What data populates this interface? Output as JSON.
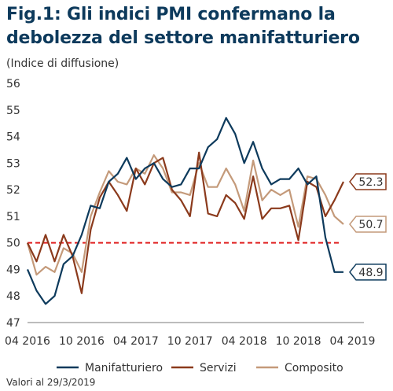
{
  "title_line1": "Fig.1: Gli indici PMI confermano la",
  "title_line2": "debolezza del settore manifatturiero",
  "footer": "Valori al 29/3/2019",
  "chart_data": {
    "type": "line",
    "ylabel": "(Indice di diffusione)",
    "ylim": [
      47,
      56
    ],
    "yticks": [
      47,
      48,
      49,
      50,
      51,
      52,
      53,
      54,
      55,
      56
    ],
    "xtick_labels": [
      "04 2016",
      "10 2016",
      "04 2017",
      "10 2017",
      "04 2018",
      "10 2018",
      "04 2019"
    ],
    "xtick_index": [
      0,
      6,
      12,
      18,
      24,
      30,
      36
    ],
    "threshold": 50,
    "x_months": [
      "2016-04",
      "2016-05",
      "2016-06",
      "2016-07",
      "2016-08",
      "2016-09",
      "2016-10",
      "2016-11",
      "2016-12",
      "2017-01",
      "2017-02",
      "2017-03",
      "2017-04",
      "2017-05",
      "2017-06",
      "2017-07",
      "2017-08",
      "2017-09",
      "2017-10",
      "2017-11",
      "2017-12",
      "2018-01",
      "2018-02",
      "2018-03",
      "2018-04",
      "2018-05",
      "2018-06",
      "2018-07",
      "2018-08",
      "2018-09",
      "2018-10",
      "2018-11",
      "2018-12",
      "2019-01",
      "2019-02",
      "2019-03"
    ],
    "series": [
      {
        "name": "Manifatturiero",
        "color": "#0d3a5c",
        "end_label": "48.9",
        "values": [
          49.0,
          48.2,
          47.7,
          48.0,
          49.2,
          49.5,
          50.3,
          51.4,
          51.3,
          52.3,
          52.6,
          53.2,
          52.4,
          52.8,
          53.0,
          52.4,
          52.1,
          52.2,
          52.8,
          52.8,
          53.6,
          53.9,
          54.7,
          54.1,
          53.0,
          53.8,
          52.8,
          52.2,
          52.4,
          52.4,
          52.8,
          52.2,
          52.5,
          50.2,
          48.9,
          48.9
        ]
      },
      {
        "name": "Servizi",
        "color": "#8b3a1c",
        "end_label": "52.3",
        "values": [
          50.0,
          49.3,
          50.3,
          49.3,
          50.3,
          49.5,
          48.1,
          50.5,
          51.7,
          52.3,
          51.8,
          51.2,
          52.8,
          52.2,
          53.0,
          53.2,
          52.0,
          51.6,
          51.0,
          53.4,
          51.1,
          51.0,
          51.8,
          51.5,
          50.9,
          52.5,
          50.9,
          51.3,
          51.3,
          51.4,
          50.1,
          52.3,
          52.1,
          51.0,
          51.6,
          52.3
        ]
      },
      {
        "name": "Composito",
        "color": "#c49a7a",
        "end_label": "50.7",
        "values": [
          50.0,
          48.8,
          49.1,
          48.9,
          49.8,
          49.6,
          48.9,
          51.0,
          51.9,
          52.7,
          52.3,
          52.2,
          52.8,
          52.6,
          53.3,
          52.8,
          51.9,
          51.9,
          51.8,
          53.0,
          52.1,
          52.1,
          52.8,
          52.2,
          51.2,
          53.1,
          51.6,
          52.0,
          51.8,
          52.0,
          50.6,
          52.5,
          52.4,
          51.8,
          51.0,
          50.7
        ]
      }
    ]
  }
}
